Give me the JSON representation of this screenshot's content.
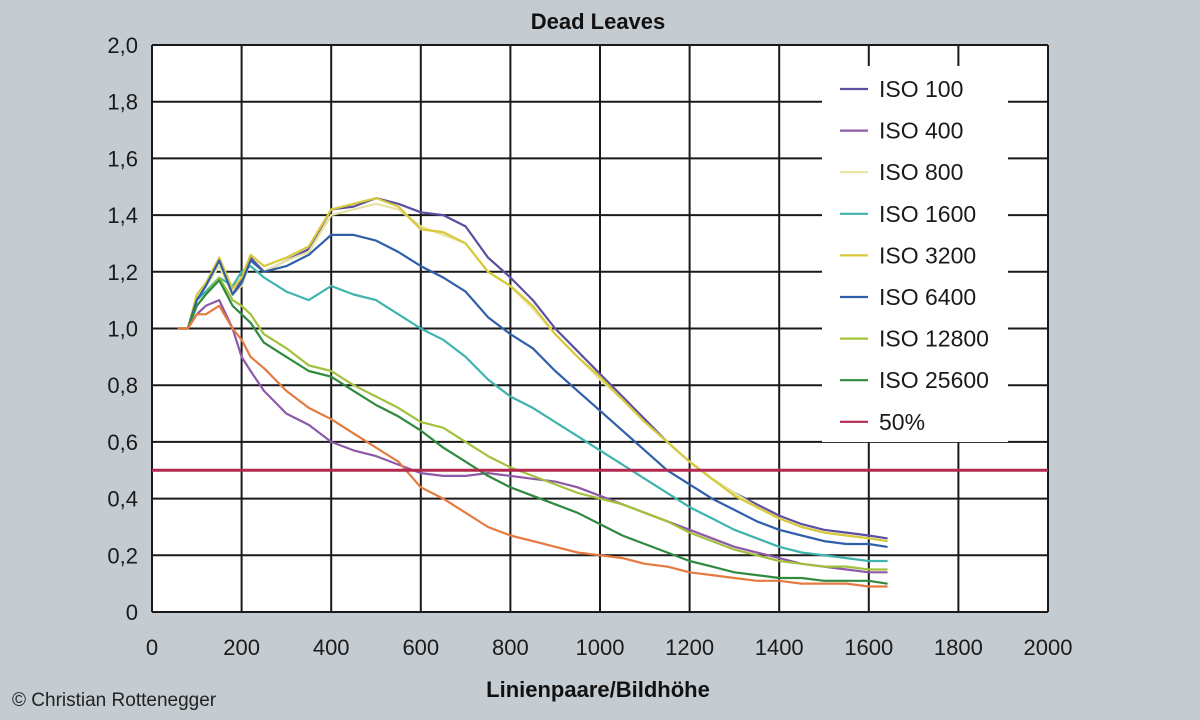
{
  "credit": "© Christian Rottenegger",
  "chart_data": {
    "type": "line",
    "title": "Dead Leaves",
    "xlabel": "Linienpaare/Bildhöhe",
    "ylabel": "",
    "xlim": [
      0,
      2000
    ],
    "ylim": [
      0,
      2.0
    ],
    "x_ticks": [
      0,
      200,
      400,
      600,
      800,
      1000,
      1200,
      1400,
      1600,
      1800,
      2000
    ],
    "y_ticks": [
      0,
      0.2,
      0.4,
      0.6,
      0.8,
      1.0,
      1.2,
      1.4,
      1.6,
      1.8,
      2.0
    ],
    "x_tick_labels": [
      "0",
      "200",
      "400",
      "600",
      "800",
      "1000",
      "1200",
      "1400",
      "1600",
      "1800",
      "2000"
    ],
    "y_tick_labels": [
      "0",
      "0,2",
      "0,4",
      "0,6",
      "0,8",
      "1,0",
      "1,2",
      "1,4",
      "1,6",
      "1,8",
      "2,0"
    ],
    "grid": true,
    "legend_position": "top-right",
    "x": [
      60,
      80,
      100,
      120,
      150,
      180,
      200,
      220,
      250,
      300,
      350,
      400,
      450,
      500,
      550,
      600,
      650,
      700,
      750,
      800,
      850,
      900,
      950,
      1000,
      1050,
      1100,
      1150,
      1200,
      1250,
      1300,
      1350,
      1400,
      1450,
      1500,
      1550,
      1600,
      1640
    ],
    "series": [
      {
        "name": "ISO 100",
        "color": "#5a4fa0",
        "values": [
          1.0,
          1.0,
          1.1,
          1.15,
          1.24,
          1.12,
          1.17,
          1.25,
          1.2,
          1.24,
          1.28,
          1.42,
          1.43,
          1.46,
          1.44,
          1.41,
          1.4,
          1.36,
          1.25,
          1.18,
          1.1,
          1.0,
          0.92,
          0.84,
          0.76,
          0.68,
          0.6,
          0.53,
          0.47,
          0.42,
          0.38,
          0.34,
          0.31,
          0.29,
          0.28,
          0.27,
          0.26
        ]
      },
      {
        "name": "ISO 400",
        "color": "#8e5aa8",
        "values": [
          1.0,
          1.0,
          1.05,
          1.08,
          1.1,
          1.0,
          0.9,
          0.85,
          0.78,
          0.7,
          0.66,
          0.6,
          0.57,
          0.55,
          0.52,
          0.49,
          0.48,
          0.48,
          0.49,
          0.48,
          0.47,
          0.46,
          0.44,
          0.41,
          0.38,
          0.35,
          0.32,
          0.29,
          0.26,
          0.23,
          0.21,
          0.19,
          0.17,
          0.16,
          0.15,
          0.14,
          0.14
        ]
      },
      {
        "name": "ISO 800",
        "color": "#e8e3a0",
        "values": [
          1.0,
          1.0,
          1.1,
          1.15,
          1.22,
          1.12,
          1.15,
          1.24,
          1.2,
          1.24,
          1.27,
          1.4,
          1.42,
          1.44,
          1.42,
          1.36,
          1.33,
          1.3,
          1.2,
          1.15,
          1.07,
          0.98,
          0.9,
          0.82,
          0.75,
          0.67,
          0.6,
          0.53,
          0.47,
          0.42,
          0.37,
          0.33,
          0.3,
          0.28,
          0.27,
          0.26,
          0.25
        ]
      },
      {
        "name": "ISO 1600",
        "color": "#3fb3ad",
        "values": [
          1.0,
          1.0,
          1.1,
          1.13,
          1.18,
          1.15,
          1.2,
          1.22,
          1.18,
          1.13,
          1.1,
          1.15,
          1.12,
          1.1,
          1.05,
          1.0,
          0.96,
          0.9,
          0.82,
          0.76,
          0.72,
          0.67,
          0.62,
          0.57,
          0.52,
          0.47,
          0.42,
          0.37,
          0.33,
          0.29,
          0.26,
          0.23,
          0.21,
          0.2,
          0.19,
          0.18,
          0.18
        ]
      },
      {
        "name": "ISO 3200",
        "color": "#d8c93a",
        "values": [
          1.0,
          1.0,
          1.12,
          1.16,
          1.25,
          1.14,
          1.18,
          1.26,
          1.22,
          1.25,
          1.29,
          1.42,
          1.44,
          1.46,
          1.43,
          1.35,
          1.34,
          1.3,
          1.2,
          1.15,
          1.08,
          0.98,
          0.9,
          0.83,
          0.75,
          0.67,
          0.6,
          0.53,
          0.47,
          0.41,
          0.37,
          0.33,
          0.3,
          0.28,
          0.27,
          0.26,
          0.25
        ]
      },
      {
        "name": "ISO 6400",
        "color": "#2f5fa8",
        "values": [
          1.0,
          1.0,
          1.1,
          1.15,
          1.24,
          1.12,
          1.16,
          1.24,
          1.2,
          1.22,
          1.26,
          1.33,
          1.33,
          1.31,
          1.27,
          1.22,
          1.18,
          1.13,
          1.04,
          0.98,
          0.93,
          0.85,
          0.78,
          0.71,
          0.64,
          0.57,
          0.5,
          0.45,
          0.4,
          0.36,
          0.32,
          0.29,
          0.27,
          0.25,
          0.24,
          0.24,
          0.23
        ]
      },
      {
        "name": "ISO 12800",
        "color": "#a2c23c",
        "values": [
          1.0,
          1.0,
          1.08,
          1.12,
          1.18,
          1.1,
          1.08,
          1.05,
          0.98,
          0.93,
          0.87,
          0.85,
          0.8,
          0.76,
          0.72,
          0.67,
          0.65,
          0.6,
          0.55,
          0.51,
          0.48,
          0.45,
          0.42,
          0.4,
          0.38,
          0.35,
          0.32,
          0.28,
          0.25,
          0.22,
          0.2,
          0.18,
          0.17,
          0.16,
          0.16,
          0.15,
          0.15
        ]
      },
      {
        "name": "ISO 25600",
        "color": "#2f8a3e",
        "values": [
          1.0,
          1.0,
          1.08,
          1.12,
          1.17,
          1.08,
          1.05,
          1.02,
          0.95,
          0.9,
          0.85,
          0.83,
          0.78,
          0.73,
          0.69,
          0.64,
          0.58,
          0.53,
          0.48,
          0.44,
          0.41,
          0.38,
          0.35,
          0.31,
          0.27,
          0.24,
          0.21,
          0.18,
          0.16,
          0.14,
          0.13,
          0.12,
          0.12,
          0.11,
          0.11,
          0.11,
          0.1
        ]
      },
      {
        "name": "",
        "color": "#e57a40",
        "values": [
          1.0,
          1.0,
          1.05,
          1.05,
          1.08,
          1.0,
          0.96,
          0.9,
          0.86,
          0.78,
          0.72,
          0.68,
          0.63,
          0.58,
          0.53,
          0.44,
          0.4,
          0.35,
          0.3,
          0.27,
          0.25,
          0.23,
          0.21,
          0.2,
          0.19,
          0.17,
          0.16,
          0.14,
          0.13,
          0.12,
          0.11,
          0.11,
          0.1,
          0.1,
          0.1,
          0.09,
          0.09
        ]
      }
    ],
    "reference_line": {
      "name": "50%",
      "y": 0.5,
      "color": "#b2284f"
    }
  }
}
